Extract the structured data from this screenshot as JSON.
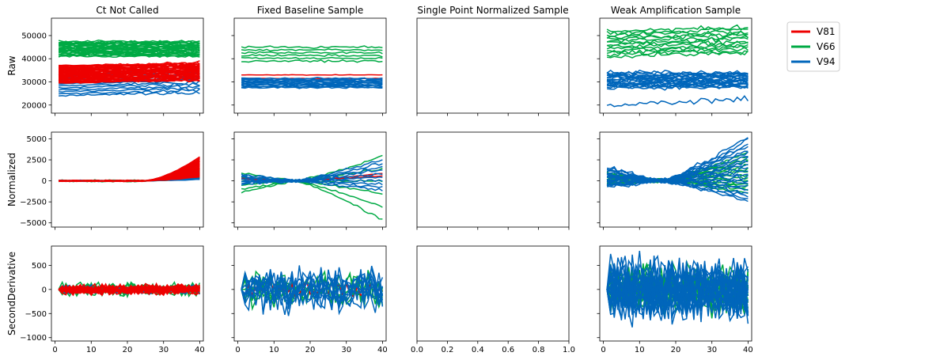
{
  "chart_data": {
    "type": "line",
    "layout": "grid-3x4",
    "columns": [
      {
        "title": "Ct Not Called"
      },
      {
        "title": "Fixed Baseline Sample"
      },
      {
        "title": "Single Point Normalized Sample"
      },
      {
        "title": "Weak Amplification Sample"
      }
    ],
    "rows": [
      {
        "ylabel": "Raw",
        "ylim": [
          16500,
          57500
        ],
        "yticks": [
          20000,
          30000,
          40000,
          50000
        ],
        "ytick_labels": [
          "20000",
          "30000",
          "40000",
          "50000"
        ]
      },
      {
        "ylabel": "Normalized",
        "ylim": [
          -5500,
          5800
        ],
        "yticks": [
          -5000,
          -2500,
          0,
          2500,
          5000
        ],
        "ytick_labels": [
          "−5000",
          "−2500",
          "0",
          "2500",
          "5000"
        ]
      },
      {
        "ylabel": "SecondDerivative",
        "ylim": [
          -1070,
          900
        ],
        "yticks": [
          -1000,
          -500,
          0,
          500
        ],
        "ytick_labels": [
          "−1000",
          "−500",
          "0",
          "500"
        ]
      }
    ],
    "xlim": [
      -1,
      41
    ],
    "xticks": [
      0,
      10,
      20,
      30,
      40
    ],
    "xtick_labels": [
      "0",
      "10",
      "20",
      "30",
      "40"
    ],
    "empty_panel": {
      "col": 2,
      "xlim": [
        0,
        1
      ],
      "xtick_labels": [
        "0.0",
        "0.2",
        "0.4",
        "0.6",
        "0.8",
        "1.0"
      ]
    },
    "legend": {
      "placement": "upper-right-outside",
      "entries": [
        {
          "name": "V81",
          "color": "#ee0000"
        },
        {
          "name": "V66",
          "color": "#00aa44"
        },
        {
          "name": "V94",
          "color": "#0066bb"
        }
      ]
    },
    "panels": [
      {
        "row": 0,
        "col": 0,
        "groups": [
          {
            "series": "V66",
            "count": 26,
            "min": 41000,
            "max": 47500,
            "noise": 400,
            "trend": 0,
            "shape": "flat"
          },
          {
            "series": "V94",
            "count": 12,
            "min": 24000,
            "max": 33500,
            "noise": 250,
            "trend": 1500,
            "shape": "flat"
          },
          {
            "series": "V81",
            "count": 38,
            "min": 29500,
            "max": 37000,
            "noise": 300,
            "trend": 1200,
            "shape": "flat"
          }
        ]
      },
      {
        "row": 0,
        "col": 1,
        "groups": [
          {
            "series": "V66",
            "count": 6,
            "min": 39000,
            "max": 45000,
            "noise": 350,
            "trend": 0,
            "shape": "flat"
          },
          {
            "series": "V81",
            "count": 2,
            "min": 31500,
            "max": 33000,
            "noise": 100,
            "trend": 0,
            "shape": "flat"
          },
          {
            "series": "V94",
            "count": 12,
            "min": 27500,
            "max": 31500,
            "noise": 300,
            "trend": 0,
            "shape": "flat"
          }
        ]
      },
      {
        "row": 0,
        "col": 3,
        "groups": [
          {
            "series": "V66",
            "count": 14,
            "min": 41000,
            "max": 52000,
            "noise": 700,
            "trend": 1500,
            "shape": "flat"
          },
          {
            "series": "V94",
            "count": 22,
            "min": 27500,
            "max": 34000,
            "noise": 700,
            "trend": 0,
            "shape": "flat"
          },
          {
            "series": "V94",
            "count": 1,
            "min": 20000,
            "max": 20000,
            "noise": 600,
            "trend": 2500,
            "shape": "flat"
          }
        ]
      },
      {
        "row": 1,
        "col": 0,
        "groups": [
          {
            "series": "V66",
            "count": 14,
            "min": -400,
            "max": 400,
            "noise": 80,
            "end": 1200,
            "shape": "late"
          },
          {
            "series": "V94",
            "count": 8,
            "min": -300,
            "max": 300,
            "noise": 60,
            "end": 900,
            "shape": "late"
          },
          {
            "series": "V81",
            "count": 24,
            "min": -300,
            "max": 300,
            "noise": 60,
            "end": 2400,
            "shape": "late"
          }
        ]
      },
      {
        "row": 1,
        "col": 1,
        "groups": [
          {
            "series": "V66",
            "count": 6,
            "min": -4600,
            "max": 3000,
            "noise": 200,
            "end": 1,
            "shape": "diverge"
          },
          {
            "series": "V81",
            "count": 2,
            "min": 600,
            "max": 900,
            "noise": 50,
            "end": 1,
            "shape": "diverge"
          },
          {
            "series": "V94",
            "count": 10,
            "min": -1200,
            "max": 2500,
            "noise": 250,
            "end": 1,
            "shape": "diverge"
          }
        ]
      },
      {
        "row": 1,
        "col": 3,
        "groups": [
          {
            "series": "V66",
            "count": 14,
            "min": -1500,
            "max": 3400,
            "noise": 300,
            "end": 1,
            "shape": "diverge"
          },
          {
            "series": "V94",
            "count": 22,
            "min": -2500,
            "max": 5200,
            "noise": 350,
            "end": 1,
            "shape": "diverge"
          }
        ]
      },
      {
        "row": 2,
        "col": 0,
        "groups": [
          {
            "series": "V66",
            "count": 12,
            "min": -150,
            "max": 150,
            "noise": 70,
            "shape": "noise"
          },
          {
            "series": "V94",
            "count": 6,
            "min": -120,
            "max": 120,
            "noise": 60,
            "shape": "noise"
          },
          {
            "series": "V81",
            "count": 20,
            "min": -120,
            "max": 120,
            "noise": 60,
            "shape": "noise"
          }
        ]
      },
      {
        "row": 2,
        "col": 1,
        "groups": [
          {
            "series": "V66",
            "count": 6,
            "min": -400,
            "max": 400,
            "noise": 200,
            "shape": "noise"
          },
          {
            "series": "V81",
            "count": 1,
            "min": -200,
            "max": 250,
            "noise": 90,
            "shape": "noise"
          },
          {
            "series": "V94",
            "count": 10,
            "min": -550,
            "max": 500,
            "noise": 250,
            "shape": "noise"
          }
        ]
      },
      {
        "row": 2,
        "col": 3,
        "groups": [
          {
            "series": "V66",
            "count": 14,
            "min": -600,
            "max": 650,
            "noise": 250,
            "shape": "noise"
          },
          {
            "series": "V94",
            "count": 22,
            "min": -1000,
            "max": 800,
            "noise": 300,
            "shape": "noise"
          }
        ]
      }
    ]
  }
}
